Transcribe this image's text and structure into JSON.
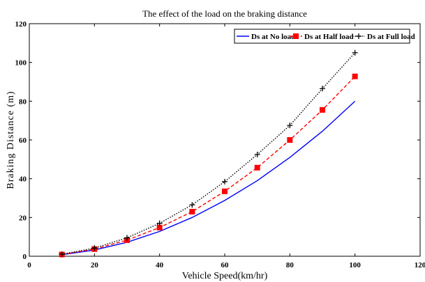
{
  "chart_data": {
    "type": "line",
    "title": "The effect of the load on the braking  distance",
    "xlabel": "Vehicle Speed(km/hr)",
    "ylabel": "Braking Distance (m)",
    "xlim": [
      0,
      120
    ],
    "ylim": [
      0,
      120
    ],
    "xticks": [
      0,
      20,
      40,
      60,
      80,
      100,
      120
    ],
    "yticks": [
      0,
      20,
      40,
      60,
      80,
      100,
      120
    ],
    "grid": false,
    "legend_position": "top-right",
    "x": [
      10,
      20,
      30,
      40,
      50,
      60,
      70,
      80,
      90,
      100
    ],
    "series": [
      {
        "name": "Ds at No load",
        "color": "#0000ff",
        "line_style": "solid",
        "marker": "none",
        "values": [
          0.8,
          3.2,
          7.2,
          12.8,
          20,
          28.8,
          39,
          51,
          64.5,
          80
        ]
      },
      {
        "name": "Ds at Half load",
        "color": "#ff0000",
        "line_style": "dashed",
        "marker": "square",
        "values": [
          0.9,
          3.7,
          8.3,
          14.8,
          23,
          33.5,
          45.7,
          60,
          75.5,
          92.8
        ]
      },
      {
        "name": "Ds at Full load",
        "color": "#000000",
        "line_style": "dotted",
        "marker": "plus",
        "values": [
          1.05,
          4.2,
          9.5,
          17,
          26.5,
          38.5,
          52.5,
          67.5,
          86.5,
          105
        ]
      }
    ]
  }
}
